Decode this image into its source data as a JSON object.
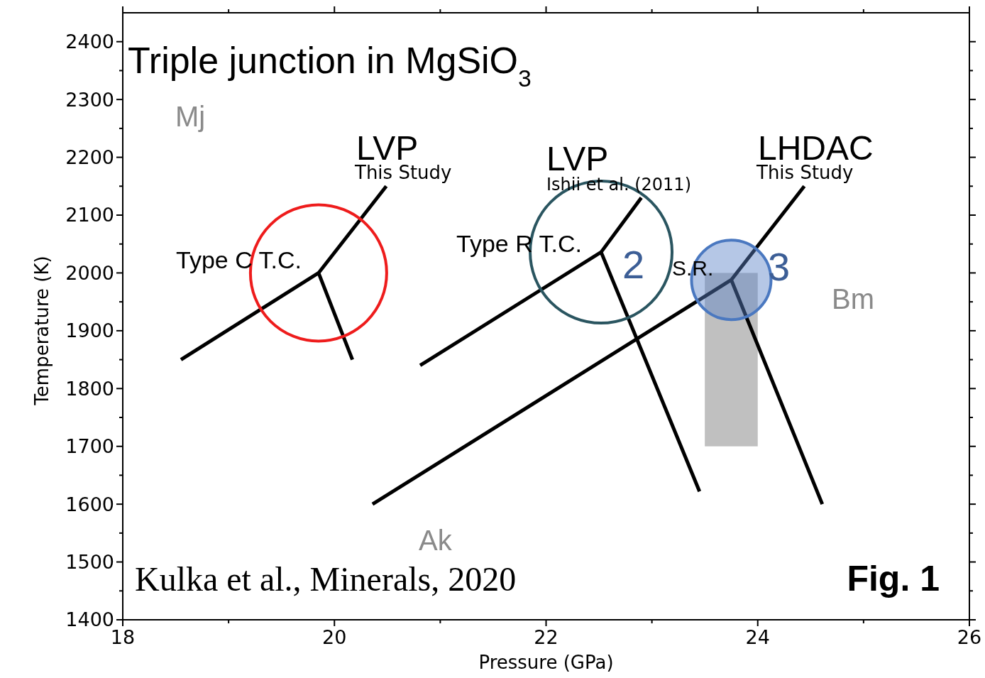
{
  "chart_data": {
    "type": "line",
    "title": "Triple junction in MgSiO$_{3}$",
    "xlabel": "Pressure (GPa)",
    "ylabel": "Temperature (K)",
    "xlim": [
      18,
      26
    ],
    "ylim": [
      1400,
      2450
    ],
    "xticks": [
      18,
      {
        "value": 19,
        "label": null
      },
      20,
      {
        "value": 21,
        "label": null
      },
      22,
      {
        "value": 23,
        "label": null
      },
      24,
      {
        "value": 25,
        "label": null
      },
      26
    ],
    "yticks": [
      1400,
      {
        "value": 1450,
        "label": null
      },
      1500,
      {
        "value": 1550,
        "label": null
      },
      1600,
      {
        "value": 1650,
        "label": null
      },
      1700,
      {
        "value": 1750,
        "label": null
      },
      1800,
      {
        "value": 1850,
        "label": null
      },
      1900,
      {
        "value": 1950,
        "label": null
      },
      2000,
      {
        "value": 2050,
        "label": null
      },
      2100,
      {
        "value": 2150,
        "label": null
      },
      2200,
      {
        "value": 2250,
        "label": null
      },
      2300,
      {
        "value": 2350,
        "label": null
      },
      2400
    ],
    "grid": false,
    "marker": "none",
    "line_style": "solid",
    "series": [
      {
        "color": "#000000",
        "x": [
          18.55,
          19.85,
          20.49,
          null,
          19.85,
          20.17
        ],
        "values": [
          1850,
          2000,
          2150,
          null,
          2000,
          1850
        ]
      },
      {
        "color": "#000000",
        "x": [
          20.81,
          22.52,
          22.9,
          null,
          22.52,
          23.45
        ],
        "values": [
          1840,
          2036,
          2130,
          null,
          2036,
          1622
        ]
      },
      {
        "color": "#000000",
        "x": [
          20.36,
          23.75,
          24.44,
          null,
          23.75,
          24.61
        ],
        "values": [
          1600,
          1988,
          2150,
          null,
          1988,
          1600
        ]
      },
      {
        "type": "bar",
        "color": "#c0c0c0",
        "x": [
          23.75
        ],
        "values": [
          300
        ],
        "base": [
          1700
        ]
      }
    ],
    "annotations": [
      "Mj",
      "LVP",
      "This Study",
      "Type C T.C.",
      "LVP",
      "Ishii et al. (2011)",
      "Type R T.C.",
      "LHDAC",
      "This Study",
      "S.R.",
      "2",
      "3",
      "Bm",
      "Ak",
      "Kulka et al., Minerals, 2020",
      "Fig. 1"
    ]
  }
}
